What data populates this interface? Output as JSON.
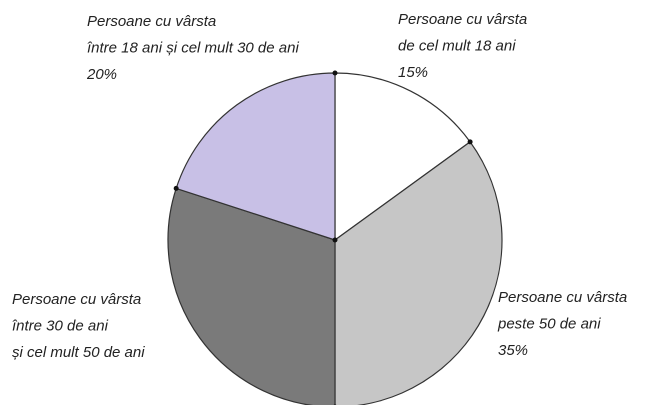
{
  "chart_data": {
    "type": "pie",
    "categories": [
      [
        "Persoane cu vârsta",
        "de cel mult 18 ani"
      ],
      [
        "Persoane cu vârsta",
        "peste 50 de ani"
      ],
      [
        "Persoane cu vârsta",
        "între 30 de ani",
        "și cel mult 50 de ani"
      ],
      [
        "Persoane cu vârsta",
        "între 18  ani și cel mult 30 de ani"
      ]
    ],
    "values": [
      15,
      35,
      30,
      20
    ],
    "value_labels": [
      "15%",
      "35%",
      null,
      "20%"
    ],
    "colors": [
      "#ffffff",
      "#c6c6c6",
      "#7a7a7a",
      "#c8c0e6"
    ]
  }
}
